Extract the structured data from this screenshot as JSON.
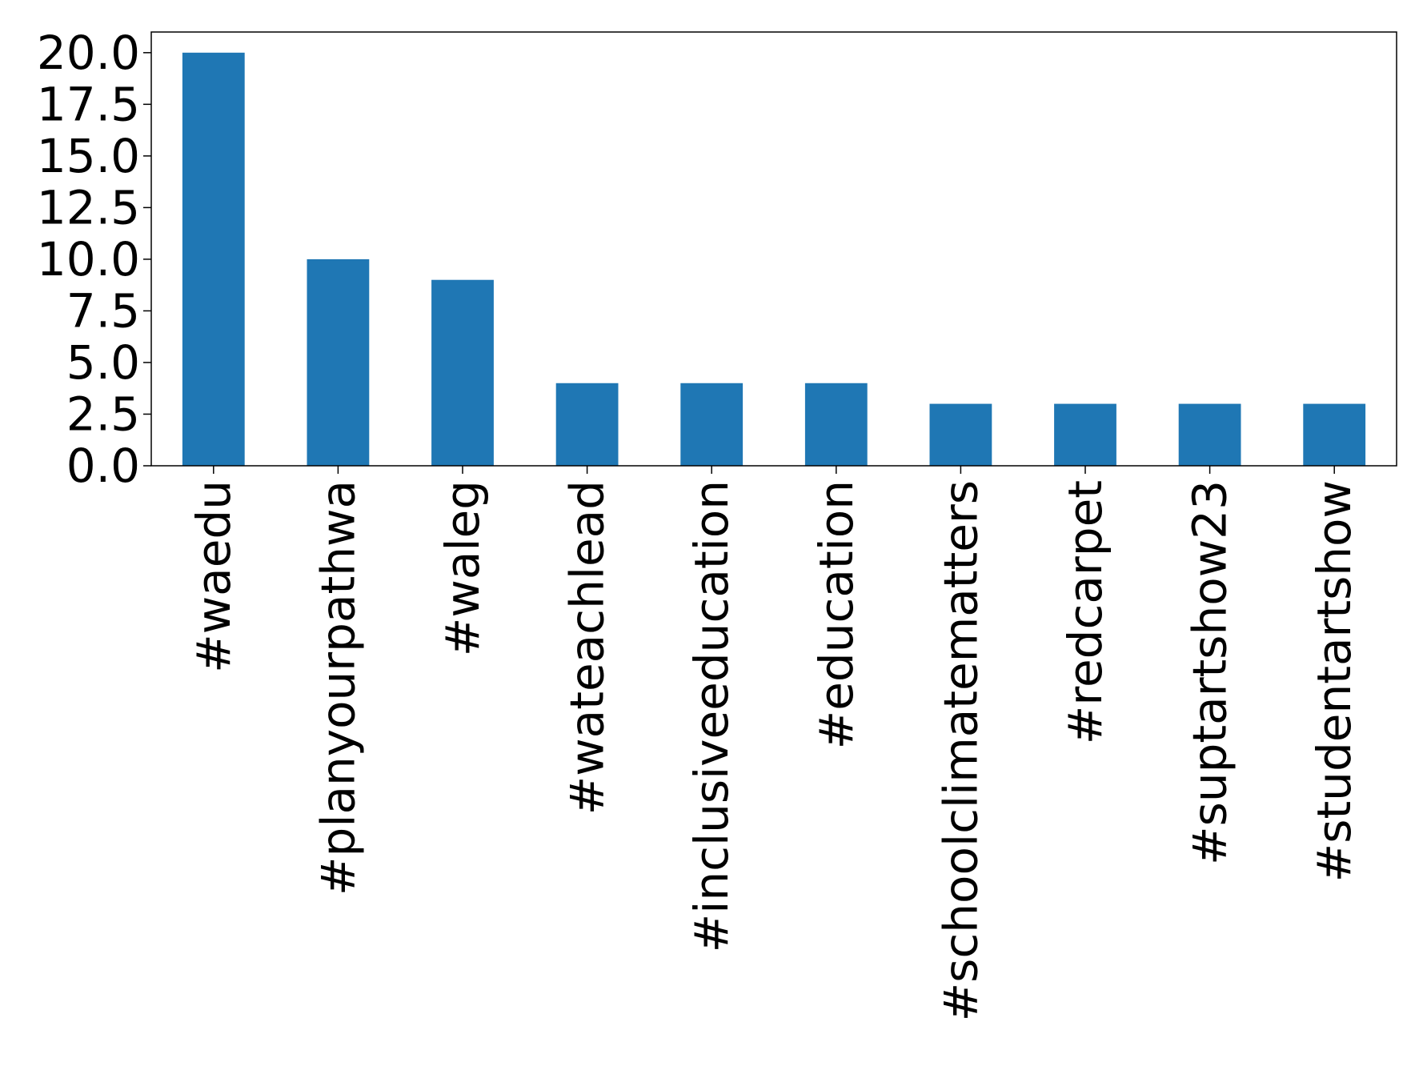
{
  "chart_data": {
    "type": "bar",
    "categories": [
      "#waedu",
      "#planyourpathwa",
      "#waleg",
      "#wateachlead",
      "#inclusiveeducation",
      "#education",
      "#schoolclimatematters",
      "#redcarpet",
      "#suptartshow23",
      "#studentartshow"
    ],
    "values": [
      20,
      10,
      9,
      4,
      4,
      4,
      3,
      3,
      3,
      3
    ],
    "ylim": [
      0,
      21
    ],
    "yticks": [
      0.0,
      2.5,
      5.0,
      7.5,
      10.0,
      12.5,
      15.0,
      17.5,
      20.0
    ],
    "ytick_labels": [
      "0.0",
      "2.5",
      "5.0",
      "7.5",
      "10.0",
      "12.5",
      "15.0",
      "17.5",
      "20.0"
    ],
    "bar_color": "#1f77b4",
    "grid": false,
    "title": "",
    "xlabel": "",
    "ylabel": ""
  }
}
